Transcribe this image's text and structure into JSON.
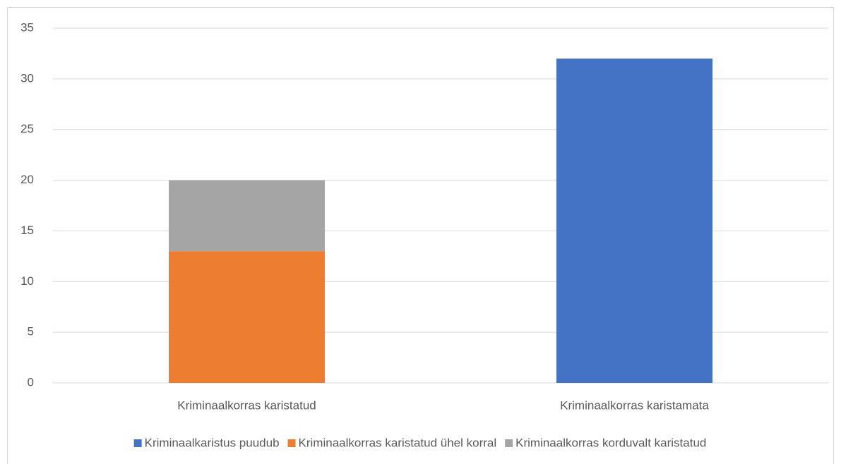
{
  "chart_data": {
    "type": "stacked_bar",
    "categories": [
      "Kriminaalkorras karistatud",
      "Kriminaalkorras karistamata"
    ],
    "series": [
      {
        "name": "Kriminaalkaristus puudub",
        "color": "#4472c4",
        "values": [
          null,
          32
        ]
      },
      {
        "name": "Kriminaalkorras karistatud ühel korral",
        "color": "#ed7d31",
        "values": [
          13,
          null
        ]
      },
      {
        "name": "Kriminaalkorras korduvalt karistatud",
        "color": "#a5a5a5",
        "values": [
          7,
          null
        ]
      }
    ],
    "ylim": [
      0,
      35
    ],
    "yticks": [
      0,
      5,
      10,
      15,
      20,
      25,
      30,
      35
    ],
    "grid": true,
    "legend": "bottom"
  }
}
